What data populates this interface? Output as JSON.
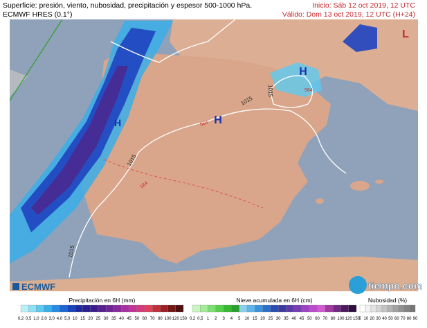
{
  "header": {
    "title": "Superficie: presión, viento, nubosidad, precipitación y espesor 500-1000 hPa.",
    "model": "ECMWF HRES (0.1°)",
    "init": "Inicio: Sáb 12 oct 2019, 12 UTC",
    "valid": "Válido: Dom 13 oct 2019, 12 UTC (H+24)"
  },
  "map": {
    "pressure_centers": [
      "H",
      "H",
      "H",
      "L"
    ],
    "isobar_labels": [
      "1015",
      "1015",
      "1015",
      "1015"
    ],
    "thickness_labels": [
      "564",
      "564",
      "564"
    ]
  },
  "footer": {
    "brand_left": "ECMWF",
    "brand_right": "tiempo.com",
    "legends": [
      {
        "title": "Precipitación en 6H (mm)",
        "labels": [
          "0,2",
          "0,5",
          "1,0",
          "2,0",
          "3,0",
          "4,0",
          "5,0",
          "10",
          "15",
          "20",
          "25",
          "30",
          "35",
          "40",
          "45",
          "50",
          "60",
          "70",
          "80",
          "100",
          "120",
          "150"
        ],
        "colors": [
          "#b8f0f8",
          "#8fe0f5",
          "#5ccbf0",
          "#3aaee8",
          "#2a8ce0",
          "#1f66d0",
          "#1a44bb",
          "#1d2aa0",
          "#2b1f8f",
          "#3b1c8a",
          "#55208f",
          "#6e2596",
          "#8b2a9c",
          "#a8309f",
          "#c23595",
          "#d53a7a",
          "#de3f5c",
          "#c22f3a",
          "#9c1f25",
          "#731717",
          "#4d0f10"
        ]
      },
      {
        "title": "Nieve acumulada en 6H (cm)",
        "labels": [
          "0,2",
          "0,5",
          "1",
          "2",
          "3",
          "4",
          "5",
          "10",
          "15",
          "20",
          "25",
          "30",
          "35",
          "40",
          "45",
          "50",
          "60",
          "70",
          "80",
          "100",
          "120",
          "150"
        ],
        "colors": [
          "#c9f5c0",
          "#a4ec98",
          "#7ddf70",
          "#55cf4a",
          "#38b934",
          "#2a9f2f",
          "#8ad0ee",
          "#5fb6ea",
          "#3b93de",
          "#2e6fcc",
          "#2a4db5",
          "#3a3aa0",
          "#5a3aa8",
          "#7a3db4",
          "#9c44c0",
          "#bb4ccc",
          "#d35ad0",
          "#a03aa0",
          "#702a80",
          "#4d1a60",
          "#2e0f40"
        ]
      },
      {
        "title": "Nubosidad (%)",
        "labels": [
          "5",
          "10",
          "20",
          "30",
          "40",
          "50",
          "60",
          "70",
          "80",
          "90"
        ],
        "colors": [
          "#ffffff",
          "#f2f2f2",
          "#e3e3e3",
          "#d4d4d4",
          "#c4c4c4",
          "#b3b3b3",
          "#a3a3a3",
          "#939393",
          "#848484",
          "#767676"
        ]
      }
    ]
  }
}
